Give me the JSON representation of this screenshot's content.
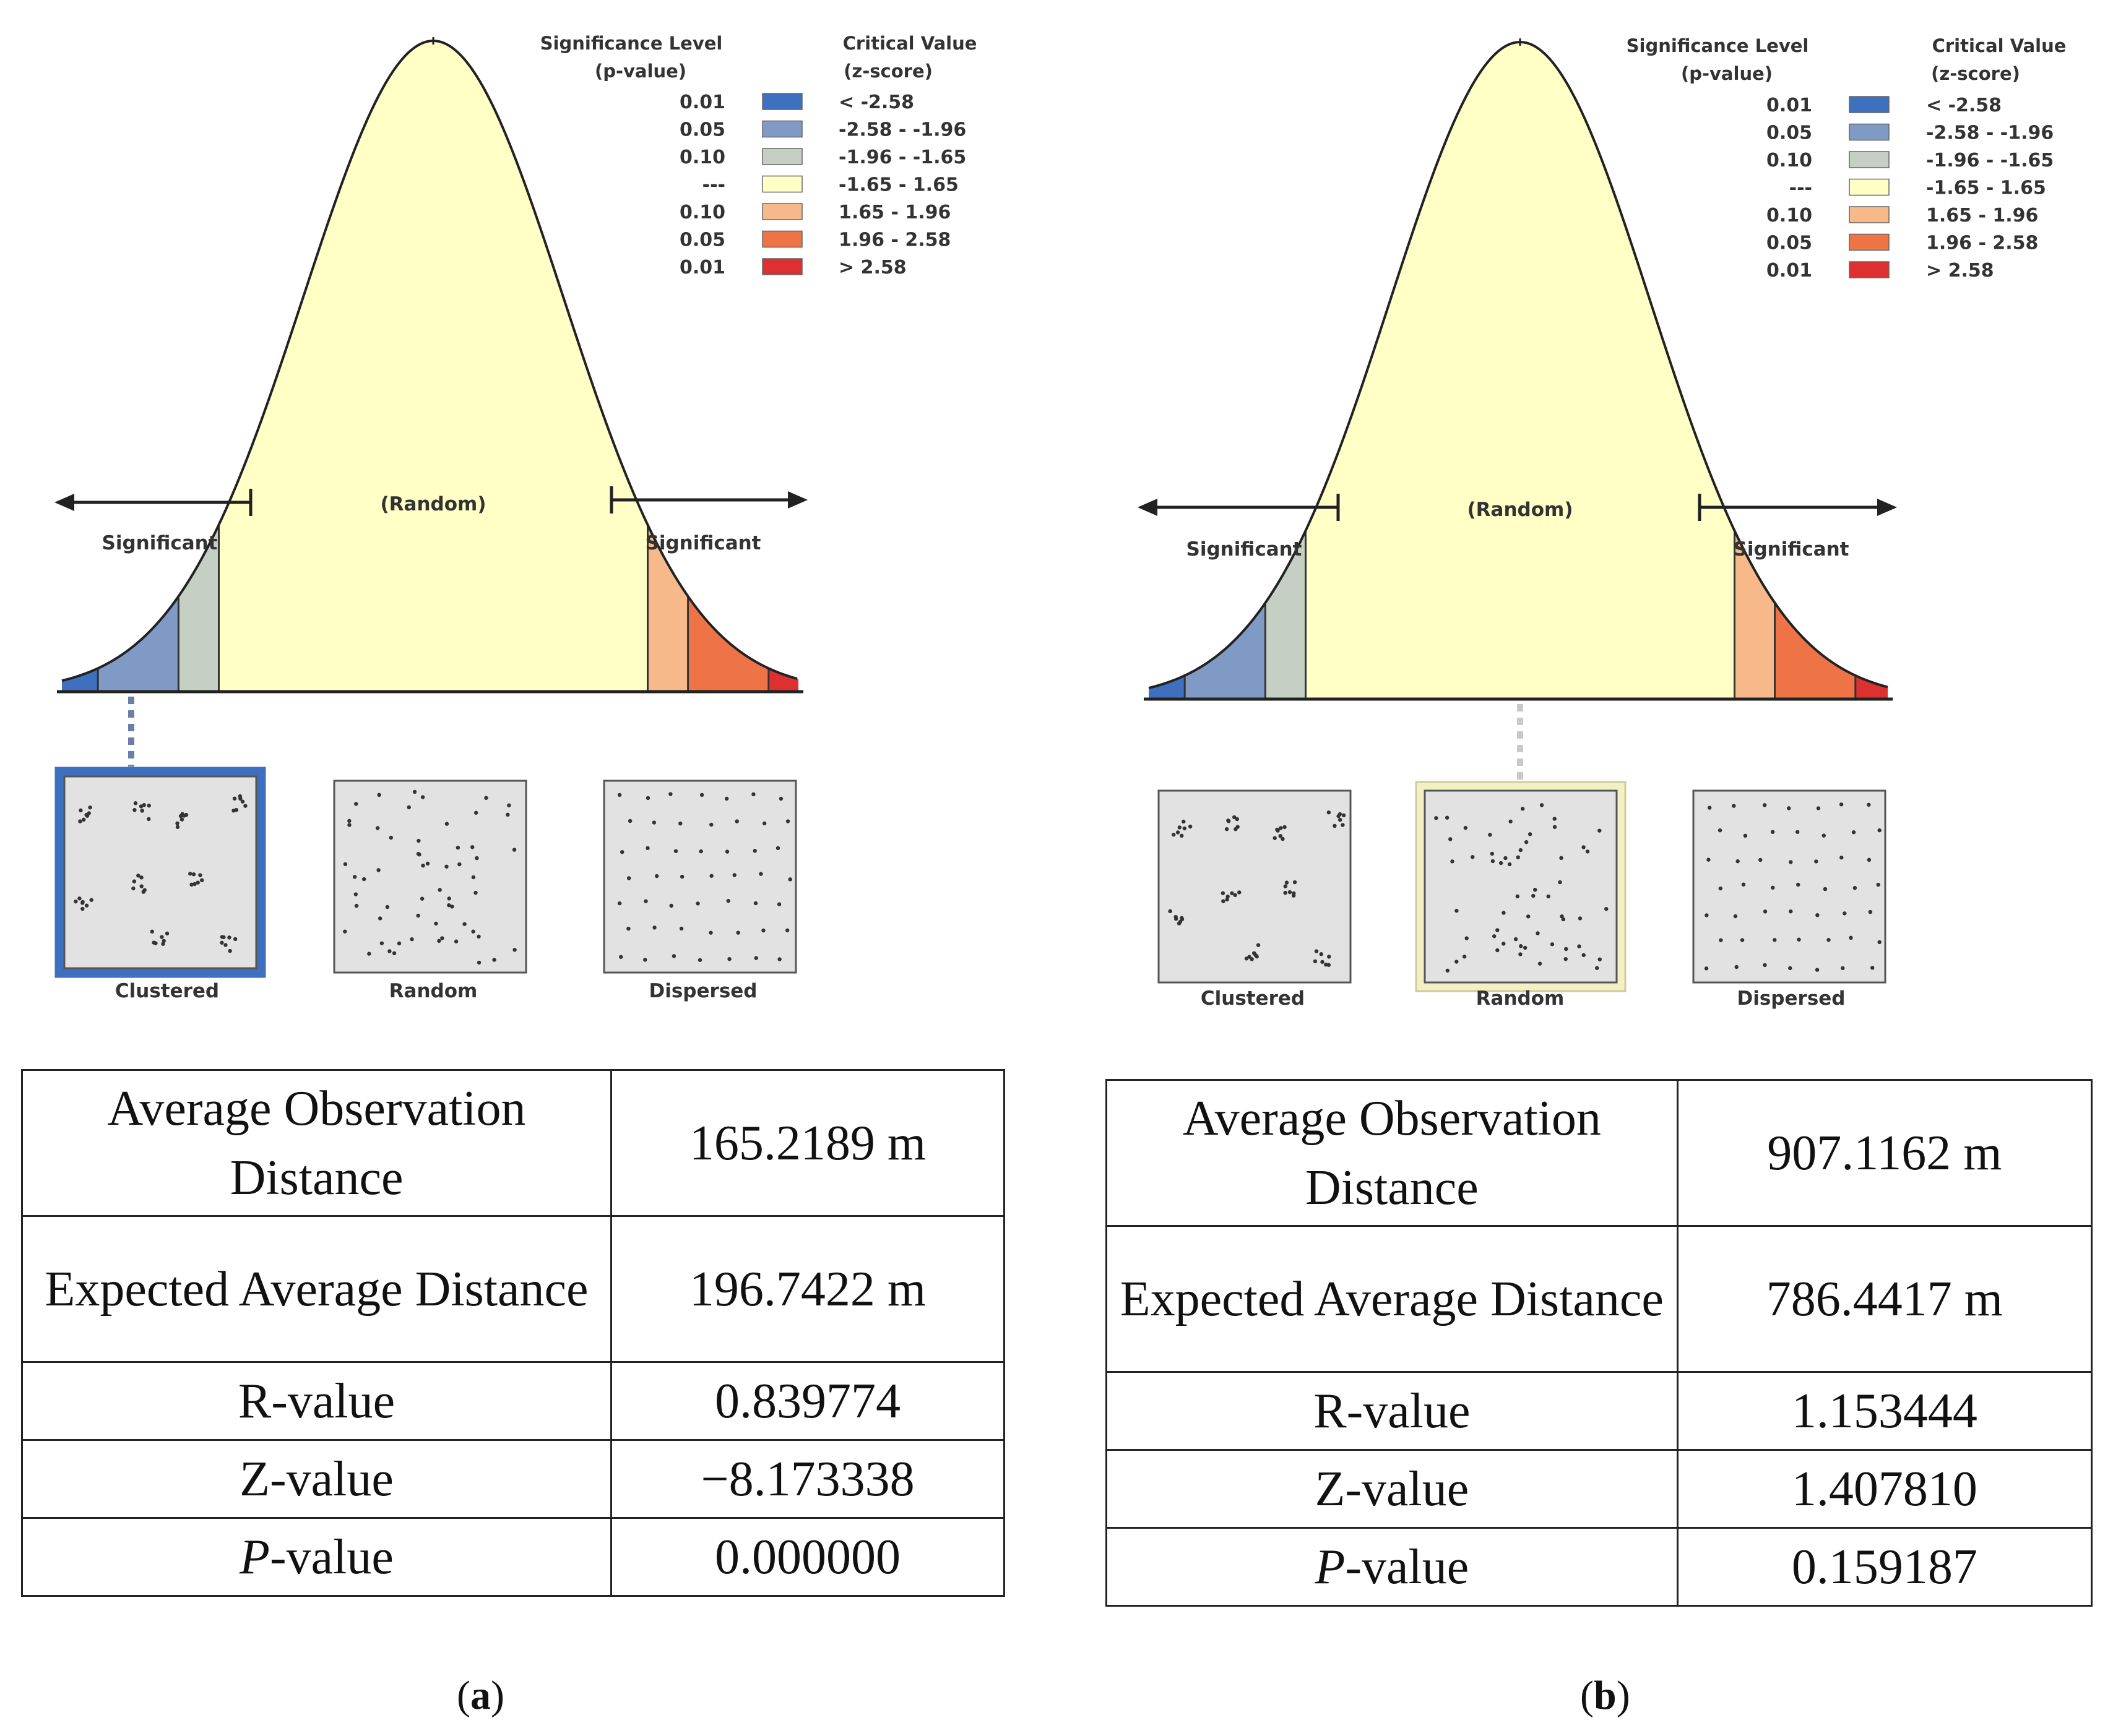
{
  "panels": [
    {
      "id": "a",
      "caption_letter": "a",
      "legend": {
        "header_left": [
          "Significance Level",
          "(p-value)"
        ],
        "header_right": [
          "Critical Value",
          "(z-score)"
        ],
        "rows": [
          {
            "p": "0.01",
            "z": "< -2.58",
            "color": "#3f6fbf"
          },
          {
            "p": "0.05",
            "z": "-2.58 - -1.96",
            "color": "#7f9ac4"
          },
          {
            "p": "0.10",
            "z": "-1.96 - -1.65",
            "color": "#c5cfc3"
          },
          {
            "p": "---",
            "z": "-1.65 - 1.65",
            "color": "#ffffc6"
          },
          {
            "p": "0.10",
            "z": "1.65 - 1.96",
            "color": "#f7b98a"
          },
          {
            "p": "0.05",
            "z": "1.96 - 2.58",
            "color": "#ee7448"
          },
          {
            "p": "0.01",
            "z": "> 2.58",
            "color": "#dd3030"
          }
        ]
      },
      "curve_center_label": "(Random)",
      "significant_left": "Significant",
      "significant_right": "Significant",
      "highlight": "clustered",
      "patterns": [
        {
          "key": "clustered",
          "label": "Clustered"
        },
        {
          "key": "random",
          "label": "Random"
        },
        {
          "key": "dispersed",
          "label": "Dispersed"
        }
      ],
      "table": [
        {
          "label": "Average Observation Distance",
          "value": "165.2189 m"
        },
        {
          "label": "Expected Average Distance",
          "value": "196.7422 m"
        },
        {
          "label": "R-value",
          "value": "0.839774"
        },
        {
          "label": "Z-value",
          "value": "−8.173338"
        },
        {
          "label_italic": "P",
          "label_rest": "-value",
          "value": "0.000000"
        }
      ]
    },
    {
      "id": "b",
      "caption_letter": "b",
      "legend": {
        "header_left": [
          "Significance Level",
          "(p-value)"
        ],
        "header_right": [
          "Critical Value",
          "(z-score)"
        ],
        "rows": [
          {
            "p": "0.01",
            "z": "< -2.58",
            "color": "#3f6fbf"
          },
          {
            "p": "0.05",
            "z": "-2.58 - -1.96",
            "color": "#7f9ac4"
          },
          {
            "p": "0.10",
            "z": "-1.96 - -1.65",
            "color": "#c5cfc3"
          },
          {
            "p": "---",
            "z": "-1.65 - 1.65",
            "color": "#ffffc6"
          },
          {
            "p": "0.10",
            "z": "1.65 - 1.96",
            "color": "#f7b98a"
          },
          {
            "p": "0.05",
            "z": "1.96 - 2.58",
            "color": "#ee7448"
          },
          {
            "p": "0.01",
            "z": "> 2.58",
            "color": "#dd3030"
          }
        ]
      },
      "curve_center_label": "(Random)",
      "significant_left": "Significant",
      "significant_right": "Significant",
      "highlight": "random",
      "patterns": [
        {
          "key": "clustered",
          "label": "Clustered"
        },
        {
          "key": "random",
          "label": "Random"
        },
        {
          "key": "dispersed",
          "label": "Dispersed"
        }
      ],
      "table": [
        {
          "label": "Average Observation Distance",
          "value": "907.1162 m"
        },
        {
          "label": "Expected Average Distance",
          "value": "786.4417 m"
        },
        {
          "label": "R-value",
          "value": "1.153444"
        },
        {
          "label": "Z-value",
          "value": "1.407810"
        },
        {
          "label_italic": "P",
          "label_rest": "-value",
          "value": "0.159187"
        }
      ]
    }
  ],
  "colors": {
    "curve_stroke": "#222222",
    "arrow": "#222222",
    "square_fill": "#e2e2e2",
    "square_border": "#555555",
    "highlight_clustered": "#3f6fbf",
    "highlight_random": "#f3f0c4",
    "connector_clustered": "#6b7fa6",
    "connector_random": "#c9c9c9"
  }
}
